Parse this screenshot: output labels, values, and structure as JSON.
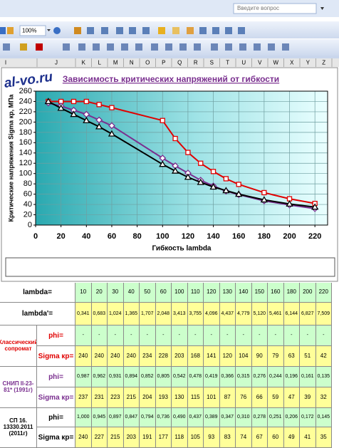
{
  "toolbar": {
    "search_placeholder": "Введите вопрос",
    "zoom": "100%"
  },
  "columns": [
    "I",
    "J",
    "K",
    "L",
    "M",
    "N",
    "O",
    "P",
    "Q",
    "R",
    "S",
    "T",
    "U",
    "V",
    "W",
    "X",
    "Y",
    "Z"
  ],
  "watermark": "al-vo.ru",
  "chart_data": {
    "type": "line",
    "title": "Зависимость критических напряжений от гибкости",
    "x_label": "Гибкость lambda",
    "y_label": "Критические напряжения Sigma кр, МПа",
    "x": [
      10,
      20,
      30,
      40,
      50,
      60,
      100,
      110,
      120,
      130,
      140,
      150,
      160,
      180,
      200,
      220
    ],
    "xlim": [
      0,
      230
    ],
    "xticks": [
      0,
      20,
      40,
      60,
      80,
      100,
      120,
      140,
      160,
      180,
      200,
      220
    ],
    "ylim": [
      0,
      260
    ],
    "yticks": [
      0,
      20,
      40,
      60,
      80,
      100,
      120,
      140,
      160,
      180,
      200,
      220,
      240,
      260
    ],
    "grid": true,
    "legend": "bottom",
    "series": [
      {
        "name": "Классический сопромат",
        "color": "#e00000",
        "marker": "square",
        "values": [
          240,
          240,
          240,
          240,
          234,
          228,
          203,
          168,
          141,
          120,
          104,
          90,
          79,
          63,
          51,
          42
        ]
      },
      {
        "name": "СНИП II-23-81* (1991г)",
        "color": "#7a2f8f",
        "marker": "diamond",
        "values": [
          237,
          231,
          223,
          215,
          204,
          193,
          130,
          115,
          101,
          87,
          76,
          66,
          59,
          47,
          39,
          32
        ]
      },
      {
        "name": "СП 16.13330.2011 (2011г)",
        "color": "#000000",
        "marker": "triangle",
        "values": [
          240,
          227,
          215,
          203,
          191,
          177,
          118,
          105,
          93,
          83,
          74,
          67,
          60,
          49,
          41,
          35
        ]
      }
    ]
  },
  "table": {
    "lambda_label": "lambda=",
    "lambda_prime_label": "lambda'=",
    "lambda_prime": [
      "0,341",
      "0,683",
      "1,024",
      "1,365",
      "1,707",
      "2,048",
      "3,413",
      "3,755",
      "4,096",
      "4,437",
      "4,779",
      "5,120",
      "5,461",
      "6,144",
      "6,827",
      "7,509"
    ],
    "groups": [
      {
        "label": "Классический сопромат",
        "phi_label": "phi=",
        "sigma_label": "Sigma кр=",
        "phi": [
          "-",
          "-",
          "-",
          "-",
          "-",
          "-",
          "-",
          "-",
          "-",
          "-",
          "-",
          "-",
          "-",
          "-",
          "-",
          "-"
        ]
      },
      {
        "label": "СНИП II-23-81* (1991г)",
        "phi_label": "phi=",
        "sigma_label": "Sigma кр=",
        "phi": [
          "0,987",
          "0,962",
          "0,931",
          "0,894",
          "0,852",
          "0,805",
          "0,542",
          "0,478",
          "0,419",
          "0,366",
          "0,315",
          "0,276",
          "0,244",
          "0,196",
          "0,161",
          "0,135"
        ]
      },
      {
        "label": "СП 16. 13330.2011 (2011г)",
        "phi_label": "phi=",
        "sigma_label": "Sigma кр=",
        "phi": [
          "1,000",
          "0,945",
          "0,897",
          "0,847",
          "0,794",
          "0,736",
          "0,490",
          "0,437",
          "0,389",
          "0,347",
          "0,310",
          "0,278",
          "0,251",
          "0,206",
          "0,172",
          "0,145"
        ]
      }
    ]
  }
}
